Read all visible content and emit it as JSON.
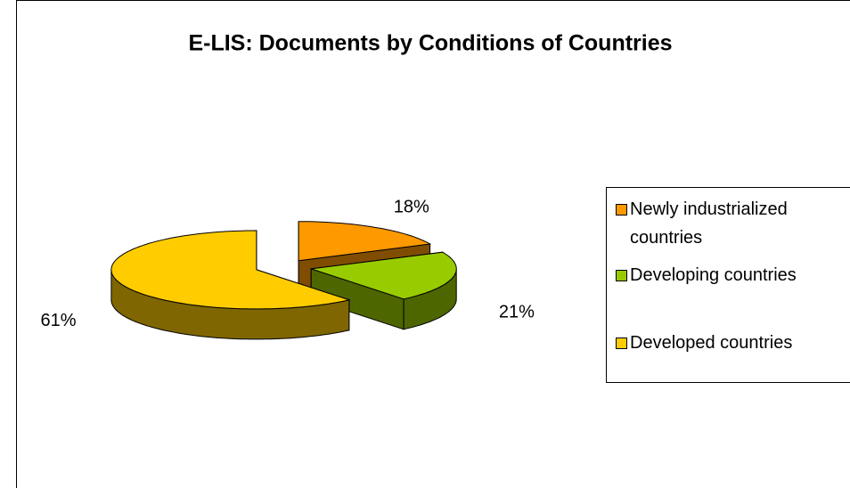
{
  "chart_data": {
    "type": "pie",
    "title": "E-LIS: Documents by Conditions of Countries",
    "categories": [
      "Newly industrialized countries",
      "Developing countries",
      "Developed countries"
    ],
    "values": [
      18,
      21,
      61
    ],
    "value_labels": [
      "18%",
      "21%",
      "61%"
    ],
    "colors": [
      "#FF9900",
      "#99CC00",
      "#FFCC00"
    ],
    "legend": "right"
  }
}
